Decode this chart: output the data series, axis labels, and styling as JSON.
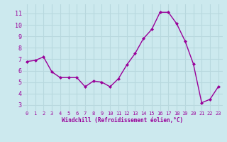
{
  "x": [
    0,
    1,
    2,
    3,
    4,
    5,
    6,
    7,
    8,
    9,
    10,
    11,
    12,
    13,
    14,
    15,
    16,
    17,
    18,
    19,
    20,
    21,
    22,
    23
  ],
  "y": [
    6.8,
    6.9,
    7.2,
    5.9,
    5.4,
    5.4,
    5.4,
    4.6,
    5.1,
    5.0,
    4.6,
    5.3,
    6.5,
    7.5,
    8.8,
    9.6,
    11.1,
    11.1,
    10.1,
    8.6,
    6.6,
    3.2,
    3.5,
    4.6
  ],
  "line_color": "#990099",
  "marker": "D",
  "marker_size": 2,
  "bg_color": "#cce9ee",
  "grid_color": "#b8d8de",
  "xlabel": "Windchill (Refroidissement éolien,°C)",
  "xlabel_color": "#990099",
  "tick_color": "#990099",
  "yticks": [
    3,
    4,
    5,
    6,
    7,
    8,
    9,
    10,
    11
  ],
  "ylim": [
    2.5,
    11.8
  ],
  "xlim": [
    -0.5,
    23.5
  ],
  "linewidth": 1.0
}
